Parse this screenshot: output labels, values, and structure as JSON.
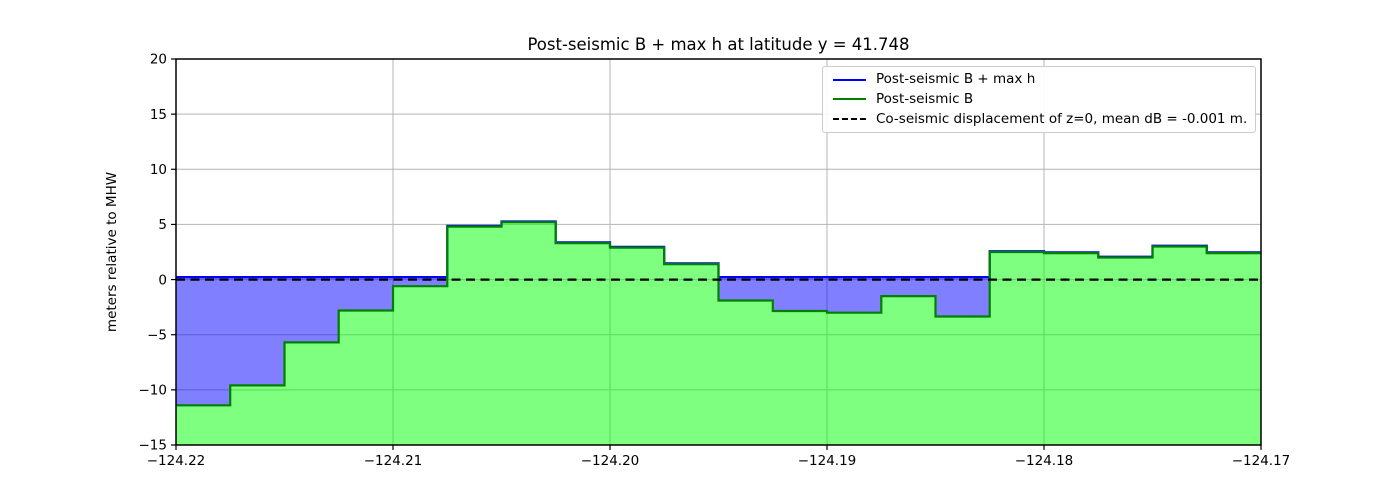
{
  "chart_data": {
    "type": "area",
    "title": "Post-seismic B + max h at latitude y = 41.748",
    "ylabel": "meters relative to MHW",
    "xlim": [
      -124.22,
      -124.17
    ],
    "ylim": [
      -15,
      20
    ],
    "grid": true,
    "grid_color": "#b4b4b4",
    "legend_position": "upper right",
    "xticks": {
      "values": [
        -124.22,
        -124.21,
        -124.2,
        -124.19,
        -124.18,
        -124.17
      ],
      "labels": [
        "−124.22",
        "−124.21",
        "−124.20",
        "−124.19",
        "−124.18",
        "−124.17"
      ]
    },
    "yticks": {
      "values": [
        20,
        15,
        10,
        5,
        0,
        -5,
        -10,
        -15
      ],
      "labels": [
        "20",
        "15",
        "10",
        "5",
        "0",
        "−5",
        "−10",
        "−15"
      ]
    },
    "step_edges": [
      -124.22,
      -124.2175,
      -124.215,
      -124.2125,
      -124.21,
      -124.2075,
      -124.205,
      -124.2025,
      -124.2,
      -124.1975,
      -124.195,
      -124.1925,
      -124.19,
      -124.1875,
      -124.185,
      -124.1825,
      -124.18,
      -124.1775,
      -124.175,
      -124.1725,
      -124.17
    ],
    "series": [
      {
        "name": "Post-seismic B + max h",
        "type": "step-line",
        "color": "#0000ff",
        "fill": "rgba(0,0,255,0.5)",
        "values": [
          0.22,
          0.22,
          0.22,
          0.22,
          0.22,
          4.87,
          5.27,
          3.37,
          2.97,
          1.47,
          0.22,
          0.22,
          0.22,
          0.22,
          0.22,
          2.57,
          2.47,
          2.07,
          3.07,
          2.47
        ]
      },
      {
        "name": "Post-seismic B",
        "type": "step-line",
        "color": "#008000",
        "fill": "rgba(0,255,0,0.5)",
        "values": [
          -11.4,
          -9.6,
          -5.7,
          -2.8,
          -0.6,
          4.8,
          5.2,
          3.3,
          2.9,
          1.4,
          -1.9,
          -2.85,
          -3.0,
          -1.5,
          -3.35,
          2.5,
          2.4,
          2.0,
          3.0,
          2.4
        ]
      },
      {
        "name": "Co-seismic displacement of z=0, mean dB = -0.001 m.",
        "type": "hline",
        "color": "#000000",
        "dashed": true,
        "y": -0.001
      }
    ]
  }
}
